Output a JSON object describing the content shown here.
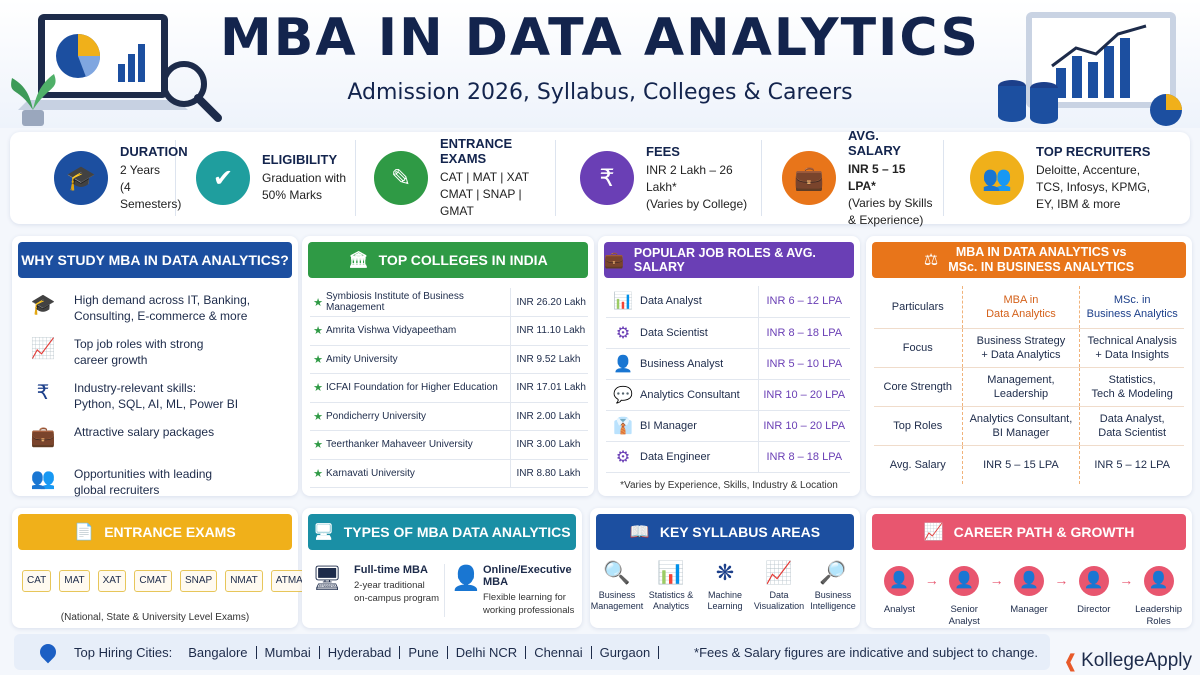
{
  "header": {
    "title": "MBA IN DATA ANALYTICS",
    "subtitle": "Admission 2026, Syllabus, Colleges & Careers"
  },
  "stats": [
    {
      "label": "DURATION",
      "text": "2 Years\n(4 Semesters)",
      "color": "#1c4fa0",
      "icon": "graduation-cap-icon"
    },
    {
      "label": "ELIGIBILITY",
      "text": "Graduation with\n50% Marks",
      "color": "#1f9e9e",
      "icon": "clipboard-check-icon"
    },
    {
      "label": "ENTRANCE EXAMS",
      "text": "CAT | MAT | XAT\nCMAT | SNAP | GMAT",
      "color": "#2f9a45",
      "icon": "exam-sheet-icon"
    },
    {
      "label": "FEES",
      "text": "INR 2 Lakh – 26 Lakh*\n(Varies by College)",
      "color": "#6a3fb5",
      "icon": "money-bag-icon"
    },
    {
      "label": "AVG. SALARY",
      "text_bold": "INR 5 – 15 LPA*",
      "text": "(Varies by Skills\n& Experience)",
      "color": "#e8751a",
      "icon": "briefcase-icon"
    },
    {
      "label": "TOP RECRUITERS",
      "text": "Deloitte, Accenture,\nTCS, Infosys, KPMG,\nEY, IBM & more",
      "color": "#f0b01a",
      "icon": "people-icon"
    }
  ],
  "why": {
    "title": "WHY STUDY MBA IN DATA ANALYTICS?",
    "color": "#1c4fa0",
    "items": [
      {
        "icon": "graduation-cap-icon",
        "text": "High demand across IT, Banking,\nConsulting, E-commerce & more"
      },
      {
        "icon": "growth-chart-icon",
        "text": "Top job roles with strong\ncareer growth"
      },
      {
        "icon": "rupee-shield-icon",
        "text": "Industry-relevant skills:\nPython, SQL, AI, ML, Power BI"
      },
      {
        "icon": "briefcase-icon",
        "text": "Attractive salary packages"
      },
      {
        "icon": "people-icon",
        "text": "Opportunities with leading\nglobal recruiters"
      }
    ]
  },
  "colleges": {
    "title": "TOP COLLEGES IN INDIA",
    "color": "#2f9a45",
    "rows": [
      {
        "name": "Symbiosis Institute of Business Management",
        "fee": "INR 26.20 Lakh"
      },
      {
        "name": "Amrita Vishwa Vidyapeetham",
        "fee": "INR 11.10 Lakh"
      },
      {
        "name": "Amity University",
        "fee": "INR 9.52 Lakh"
      },
      {
        "name": "ICFAI Foundation for Higher Education",
        "fee": "INR 17.01 Lakh"
      },
      {
        "name": "Pondicherry University",
        "fee": "INR 2.00 Lakh"
      },
      {
        "name": "Teerthanker Mahaveer University",
        "fee": "INR 3.00 Lakh"
      },
      {
        "name": "Karnavati University",
        "fee": "INR 8.80 Lakh"
      }
    ]
  },
  "jobs": {
    "title": "POPULAR JOB ROLES & AVG. SALARY",
    "color": "#6a3fb5",
    "rows": [
      {
        "icon": "bar-chart-icon",
        "role": "Data Analyst",
        "salary": "INR 6 – 12 LPA"
      },
      {
        "icon": "gear-icon",
        "role": "Data Scientist",
        "salary": "INR 8 – 18 LPA"
      },
      {
        "icon": "analyst-icon",
        "role": "Business Analyst",
        "salary": "INR 5 – 10 LPA"
      },
      {
        "icon": "consultant-icon",
        "role": "Analytics Consultant",
        "salary": "INR 10 – 20 LPA"
      },
      {
        "icon": "manager-icon",
        "role": "BI Manager",
        "salary": "INR 10 – 20 LPA"
      },
      {
        "icon": "engineer-icon",
        "role": "Data Engineer",
        "salary": "INR 8 – 18 LPA"
      }
    ],
    "note": "*Varies by Experience, Skills, Industry & Location"
  },
  "compare": {
    "title": "MBA IN DATA ANALYTICS vs\nMSc. IN BUSINESS ANALYTICS",
    "color": "#e8751a",
    "headers": [
      "Particulars",
      "MBA in\nData Analytics",
      "MSc. in\nBusiness Analytics"
    ],
    "rows": [
      [
        "Focus",
        "Business Strategy\n+ Data Analytics",
        "Technical Analysis\n+ Data Insights"
      ],
      [
        "Core Strength",
        "Management,\nLeadership",
        "Statistics,\nTech & Modeling"
      ],
      [
        "Top Roles",
        "Analytics Consultant,\nBI Manager",
        "Data Analyst,\nData Scientist"
      ],
      [
        "Avg. Salary",
        "INR 5 – 15 LPA",
        "INR 5 – 12 LPA"
      ]
    ]
  },
  "exams": {
    "title": "ENTRANCE EXAMS",
    "color": "#f0b01a",
    "items": [
      "CAT",
      "MAT",
      "XAT",
      "CMAT",
      "SNAP",
      "NMAT",
      "ATMA"
    ],
    "note": "(National, State & University Level Exams)"
  },
  "types": {
    "title": "TYPES OF MBA DATA ANALYTICS",
    "color": "#1a8fa5",
    "items": [
      {
        "icon": "monitor-icon",
        "label": "Full-time MBA",
        "desc": "2-year traditional\non-campus program"
      },
      {
        "icon": "person-icon",
        "label": "Online/Executive MBA",
        "desc": "Flexible learning for\nworking professionals"
      }
    ]
  },
  "syllabus": {
    "title": "KEY SYLLABUS AREAS",
    "color": "#1c4fa0",
    "items": [
      {
        "icon": "business-icon",
        "label": "Business\nManagement"
      },
      {
        "icon": "stats-icon",
        "label": "Statistics &\nAnalytics"
      },
      {
        "icon": "brain-icon",
        "label": "Machine\nLearning"
      },
      {
        "icon": "visualization-icon",
        "label": "Data\nVisualization"
      },
      {
        "icon": "intelligence-icon",
        "label": "Business\nIntelligence"
      }
    ]
  },
  "career": {
    "title": "CAREER PATH & GROWTH",
    "color": "#e8566f",
    "steps": [
      "Analyst",
      "Senior Analyst",
      "Manager",
      "Director",
      "Leadership\nRoles"
    ]
  },
  "footer": {
    "label": "Top Hiring Cities:",
    "cities": [
      "Bangalore",
      "Mumbai",
      "Hyderabad",
      "Pune",
      "Delhi NCR",
      "Chennai",
      "Gurgaon"
    ],
    "note": "*Fees & Salary figures are indicative and subject to change.",
    "brand": "KollegeApply"
  }
}
